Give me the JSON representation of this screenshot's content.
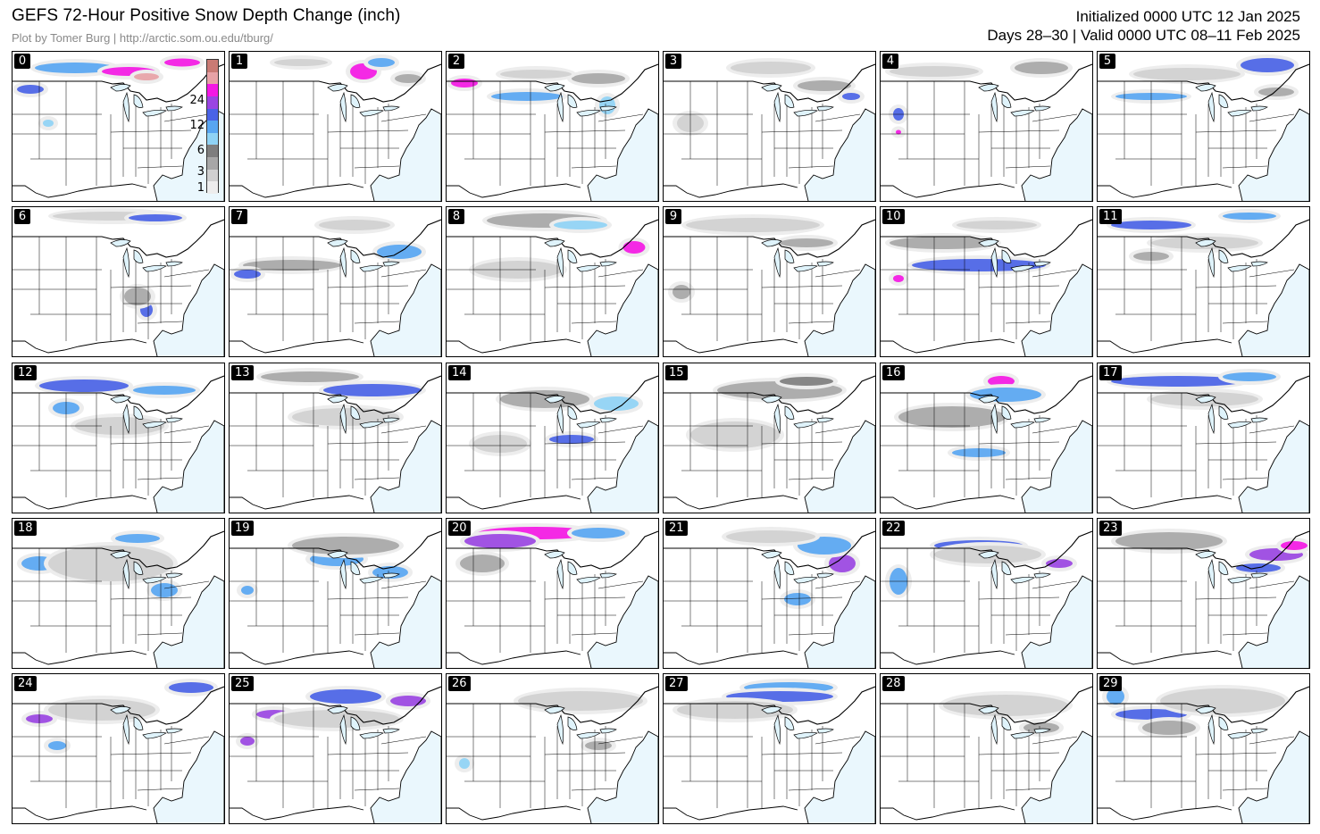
{
  "header": {
    "title": "GEFS 72-Hour Positive Snow Depth Change (inch)",
    "subtitle": "Plot by Tomer Burg | http://arctic.som.ou.edu/tburg/",
    "initialized": "Initialized 0000 UTC 12 Jan 2025",
    "valid": "Days 28–30 | Valid 0000 UTC 08–11 Feb 2025"
  },
  "colors": {
    "ocean": "#eaf7fd",
    "trace": "#ededed",
    "light": "#d0d0d0",
    "mid": "#a7a7a7",
    "dark": "#7e7e7e",
    "sky": "#8fd3f5",
    "blue": "#58a6f2",
    "royal": "#4a63e6",
    "violet": "#9a45e2",
    "magenta": "#f418e4",
    "pink": "#e7a2a6",
    "salmon": "#c97a74"
  },
  "colorbar": {
    "ticks": [
      "1",
      "3",
      "6",
      "12",
      "24"
    ]
  },
  "panels": [
    {
      "label": "0",
      "blobs": [
        [
          70,
          18,
          90,
          12,
          "blue"
        ],
        [
          130,
          22,
          60,
          10,
          "magenta"
        ],
        [
          150,
          28,
          28,
          8,
          "pink"
        ],
        [
          190,
          12,
          40,
          9,
          "magenta"
        ],
        [
          20,
          42,
          30,
          10,
          "royal"
        ],
        [
          40,
          80,
          12,
          8,
          "sky"
        ]
      ]
    },
    {
      "label": "1",
      "blobs": [
        [
          150,
          22,
          30,
          18,
          "magenta"
        ],
        [
          170,
          12,
          30,
          10,
          "blue"
        ],
        [
          80,
          12,
          60,
          8,
          "light"
        ],
        [
          200,
          30,
          30,
          10,
          "mid"
        ]
      ]
    },
    {
      "label": "2",
      "blobs": [
        [
          20,
          35,
          30,
          10,
          "magenta"
        ],
        [
          90,
          50,
          80,
          10,
          "blue"
        ],
        [
          170,
          30,
          60,
          12,
          "mid"
        ],
        [
          100,
          25,
          80,
          10,
          "light"
        ],
        [
          180,
          60,
          18,
          20,
          "sky"
        ]
      ]
    },
    {
      "label": "3",
      "blobs": [
        [
          120,
          18,
          90,
          14,
          "light"
        ],
        [
          180,
          38,
          60,
          12,
          "mid"
        ],
        [
          210,
          50,
          20,
          8,
          "royal"
        ],
        [
          30,
          80,
          30,
          20,
          "light"
        ]
      ]
    },
    {
      "label": "4",
      "blobs": [
        [
          180,
          18,
          60,
          14,
          "mid"
        ],
        [
          60,
          22,
          100,
          12,
          "light"
        ],
        [
          20,
          70,
          12,
          14,
          "royal"
        ],
        [
          20,
          90,
          6,
          5,
          "magenta"
        ]
      ]
    },
    {
      "label": "5",
      "blobs": [
        [
          190,
          15,
          60,
          16,
          "royal"
        ],
        [
          60,
          50,
          80,
          8,
          "blue"
        ],
        [
          100,
          25,
          120,
          14,
          "light"
        ],
        [
          200,
          45,
          40,
          10,
          "mid"
        ]
      ]
    },
    {
      "label": "6",
      "blobs": [
        [
          110,
          10,
          130,
          10,
          "light"
        ],
        [
          160,
          12,
          60,
          8,
          "royal"
        ],
        [
          150,
          115,
          14,
          16,
          "royal"
        ],
        [
          140,
          100,
          30,
          20,
          "mid"
        ]
      ]
    },
    {
      "label": "7",
      "blobs": [
        [
          70,
          65,
          110,
          12,
          "mid"
        ],
        [
          20,
          75,
          30,
          10,
          "royal"
        ],
        [
          190,
          50,
          50,
          16,
          "blue"
        ],
        [
          140,
          20,
          80,
          12,
          "light"
        ]
      ]
    },
    {
      "label": "8",
      "blobs": [
        [
          110,
          15,
          130,
          16,
          "mid"
        ],
        [
          150,
          20,
          60,
          10,
          "sky"
        ],
        [
          210,
          45,
          25,
          14,
          "magenta"
        ],
        [
          80,
          70,
          100,
          20,
          "light"
        ]
      ]
    },
    {
      "label": "9",
      "blobs": [
        [
          100,
          20,
          150,
          16,
          "light"
        ],
        [
          160,
          40,
          60,
          10,
          "mid"
        ],
        [
          20,
          95,
          20,
          16,
          "mid"
        ]
      ]
    },
    {
      "label": "10",
      "blobs": [
        [
          110,
          65,
          150,
          14,
          "royal"
        ],
        [
          70,
          40,
          120,
          14,
          "mid"
        ],
        [
          130,
          20,
          90,
          10,
          "light"
        ],
        [
          20,
          80,
          12,
          8,
          "magenta"
        ]
      ]
    },
    {
      "label": "11",
      "blobs": [
        [
          60,
          20,
          90,
          10,
          "royal"
        ],
        [
          170,
          10,
          60,
          8,
          "blue"
        ],
        [
          120,
          40,
          120,
          14,
          "light"
        ],
        [
          60,
          55,
          40,
          10,
          "mid"
        ]
      ]
    },
    {
      "label": "12",
      "blobs": [
        [
          80,
          25,
          100,
          14,
          "royal"
        ],
        [
          170,
          30,
          70,
          10,
          "blue"
        ],
        [
          60,
          50,
          30,
          14,
          "blue"
        ],
        [
          120,
          70,
          100,
          20,
          "light"
        ]
      ]
    },
    {
      "label": "13",
      "blobs": [
        [
          160,
          30,
          110,
          14,
          "royal"
        ],
        [
          90,
          15,
          110,
          12,
          "mid"
        ],
        [
          130,
          60,
          120,
          20,
          "light"
        ]
      ]
    },
    {
      "label": "14",
      "blobs": [
        [
          140,
          85,
          50,
          10,
          "royal"
        ],
        [
          190,
          45,
          50,
          16,
          "sky"
        ],
        [
          110,
          40,
          100,
          20,
          "mid"
        ],
        [
          60,
          90,
          60,
          20,
          "light"
        ]
      ]
    },
    {
      "label": "15",
      "blobs": [
        [
          130,
          30,
          140,
          20,
          "mid"
        ],
        [
          160,
          20,
          60,
          10,
          "dark"
        ],
        [
          80,
          80,
          100,
          30,
          "light"
        ]
      ]
    },
    {
      "label": "16",
      "blobs": [
        [
          135,
          20,
          30,
          12,
          "magenta"
        ],
        [
          140,
          35,
          80,
          16,
          "blue"
        ],
        [
          110,
          100,
          60,
          10,
          "blue"
        ],
        [
          80,
          60,
          120,
          24,
          "mid"
        ]
      ]
    },
    {
      "label": "17",
      "blobs": [
        [
          90,
          20,
          150,
          12,
          "royal"
        ],
        [
          170,
          15,
          60,
          10,
          "blue"
        ],
        [
          120,
          40,
          120,
          16,
          "light"
        ]
      ]
    },
    {
      "label": "18",
      "blobs": [
        [
          140,
          22,
          50,
          10,
          "blue"
        ],
        [
          170,
          80,
          30,
          16,
          "blue"
        ],
        [
          30,
          50,
          40,
          16,
          "blue"
        ],
        [
          110,
          50,
          140,
          40,
          "light"
        ]
      ]
    },
    {
      "label": "19",
      "blobs": [
        [
          120,
          45,
          60,
          16,
          "blue"
        ],
        [
          180,
          60,
          40,
          14,
          "blue"
        ],
        [
          20,
          80,
          14,
          10,
          "blue"
        ],
        [
          130,
          30,
          120,
          20,
          "mid"
        ]
      ]
    },
    {
      "label": "20",
      "blobs": [
        [
          100,
          16,
          130,
          14,
          "magenta"
        ],
        [
          60,
          25,
          80,
          16,
          "violet"
        ],
        [
          170,
          16,
          60,
          12,
          "blue"
        ],
        [
          40,
          50,
          50,
          20,
          "mid"
        ]
      ]
    },
    {
      "label": "21",
      "blobs": [
        [
          200,
          50,
          30,
          20,
          "violet"
        ],
        [
          180,
          30,
          60,
          20,
          "blue"
        ],
        [
          120,
          20,
          100,
          14,
          "light"
        ],
        [
          150,
          90,
          30,
          14,
          "blue"
        ]
      ]
    },
    {
      "label": "22",
      "blobs": [
        [
          110,
          30,
          100,
          12,
          "royal"
        ],
        [
          200,
          50,
          30,
          10,
          "violet"
        ],
        [
          20,
          70,
          20,
          30,
          "blue"
        ],
        [
          120,
          40,
          120,
          20,
          "light"
        ]
      ]
    },
    {
      "label": "23",
      "blobs": [
        [
          200,
          40,
          60,
          14,
          "violet"
        ],
        [
          220,
          30,
          30,
          10,
          "magenta"
        ],
        [
          80,
          25,
          120,
          20,
          "mid"
        ],
        [
          180,
          55,
          50,
          10,
          "royal"
        ]
      ]
    },
    {
      "label": "24",
      "blobs": [
        [
          200,
          15,
          50,
          12,
          "royal"
        ],
        [
          30,
          50,
          30,
          10,
          "violet"
        ],
        [
          100,
          40,
          120,
          24,
          "light"
        ],
        [
          50,
          80,
          20,
          10,
          "blue"
        ]
      ]
    },
    {
      "label": "25",
      "blobs": [
        [
          50,
          45,
          40,
          10,
          "violet"
        ],
        [
          130,
          25,
          80,
          16,
          "royal"
        ],
        [
          200,
          30,
          40,
          12,
          "violet"
        ],
        [
          20,
          75,
          16,
          10,
          "violet"
        ],
        [
          120,
          50,
          140,
          20,
          "light"
        ]
      ]
    },
    {
      "label": "26",
      "blobs": [
        [
          150,
          30,
          140,
          22,
          "light"
        ],
        [
          20,
          100,
          12,
          12,
          "sky"
        ],
        [
          170,
          80,
          30,
          10,
          "mid"
        ]
      ]
    },
    {
      "label": "27",
      "blobs": [
        [
          140,
          15,
          100,
          12,
          "blue"
        ],
        [
          130,
          25,
          120,
          12,
          "royal"
        ],
        [
          80,
          40,
          130,
          20,
          "light"
        ]
      ]
    },
    {
      "label": "28",
      "blobs": [
        [
          140,
          35,
          140,
          24,
          "light"
        ],
        [
          180,
          60,
          40,
          12,
          "mid"
        ]
      ]
    },
    {
      "label": "29",
      "blobs": [
        [
          60,
          45,
          80,
          12,
          "royal"
        ],
        [
          20,
          25,
          20,
          18,
          "blue"
        ],
        [
          140,
          30,
          140,
          28,
          "light"
        ],
        [
          80,
          60,
          60,
          16,
          "mid"
        ]
      ]
    }
  ]
}
